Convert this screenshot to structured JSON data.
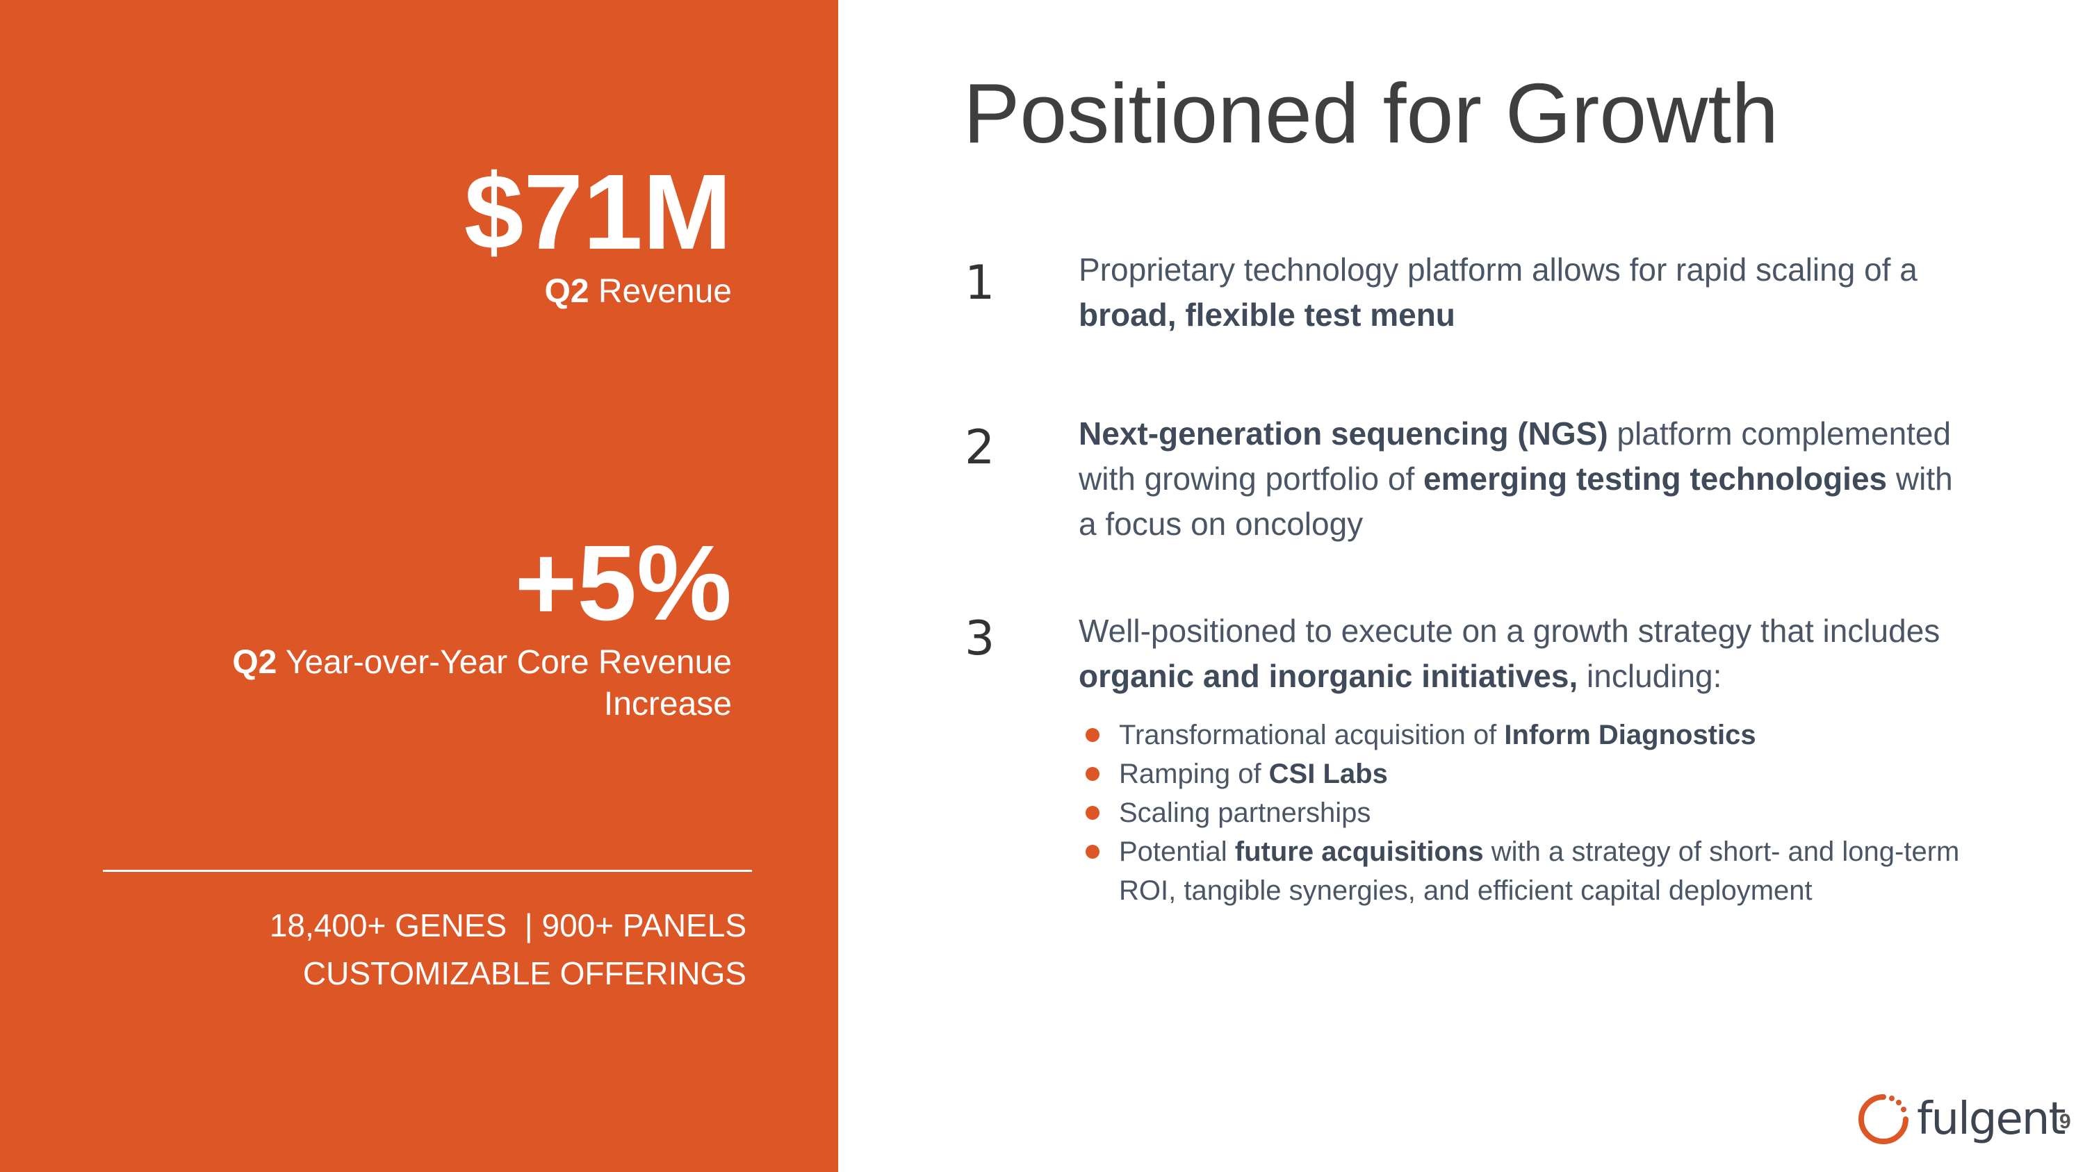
{
  "left_panel": {
    "stat_1": {
      "value": "$71M",
      "label_bold": "Q2",
      "label_rest": " Revenue"
    },
    "stat_2": {
      "value": "+5%",
      "label_bold": "Q2",
      "label_rest": " Year-over-Year Core Revenue Increase"
    },
    "offerings_line_1": "18,400+ GENES  | 900+ PANELS",
    "offerings_line_2": "CUSTOMIZABLE OFFERINGS"
  },
  "main": {
    "title": "Positioned for Growth",
    "items": [
      {
        "number": "1",
        "parts": [
          "Proprietary technology platform allows for rapid scaling of a ",
          "broad, flexible test menu"
        ]
      },
      {
        "number": "2",
        "parts": [
          "Next-generation sequencing (NGS)",
          " platform complemented with growing portfolio of ",
          "emerging testing technologies",
          " with a focus on oncology"
        ]
      },
      {
        "number": "3",
        "parts": [
          "Well-positioned to execute on a growth strategy that includes ",
          "organic and inorganic initiatives,",
          " including:"
        ]
      }
    ],
    "bullets": [
      {
        "parts": [
          "Transformational acquisition of ",
          "Inform Diagnostics"
        ]
      },
      {
        "parts": [
          "Ramping of ",
          "CSI Labs"
        ]
      },
      {
        "parts": [
          "Scaling partnerships"
        ]
      },
      {
        "parts": [
          "Potential ",
          "future acquisitions",
          " with a strategy of short- and long-term ROI, tangible synergies, and efficient capital deployment"
        ]
      }
    ]
  },
  "footer": {
    "logo_text": "fulgent",
    "logo_icon": "fulgent-circle-logo-icon",
    "page_number": "9",
    "accent_color": "#dd5626"
  }
}
